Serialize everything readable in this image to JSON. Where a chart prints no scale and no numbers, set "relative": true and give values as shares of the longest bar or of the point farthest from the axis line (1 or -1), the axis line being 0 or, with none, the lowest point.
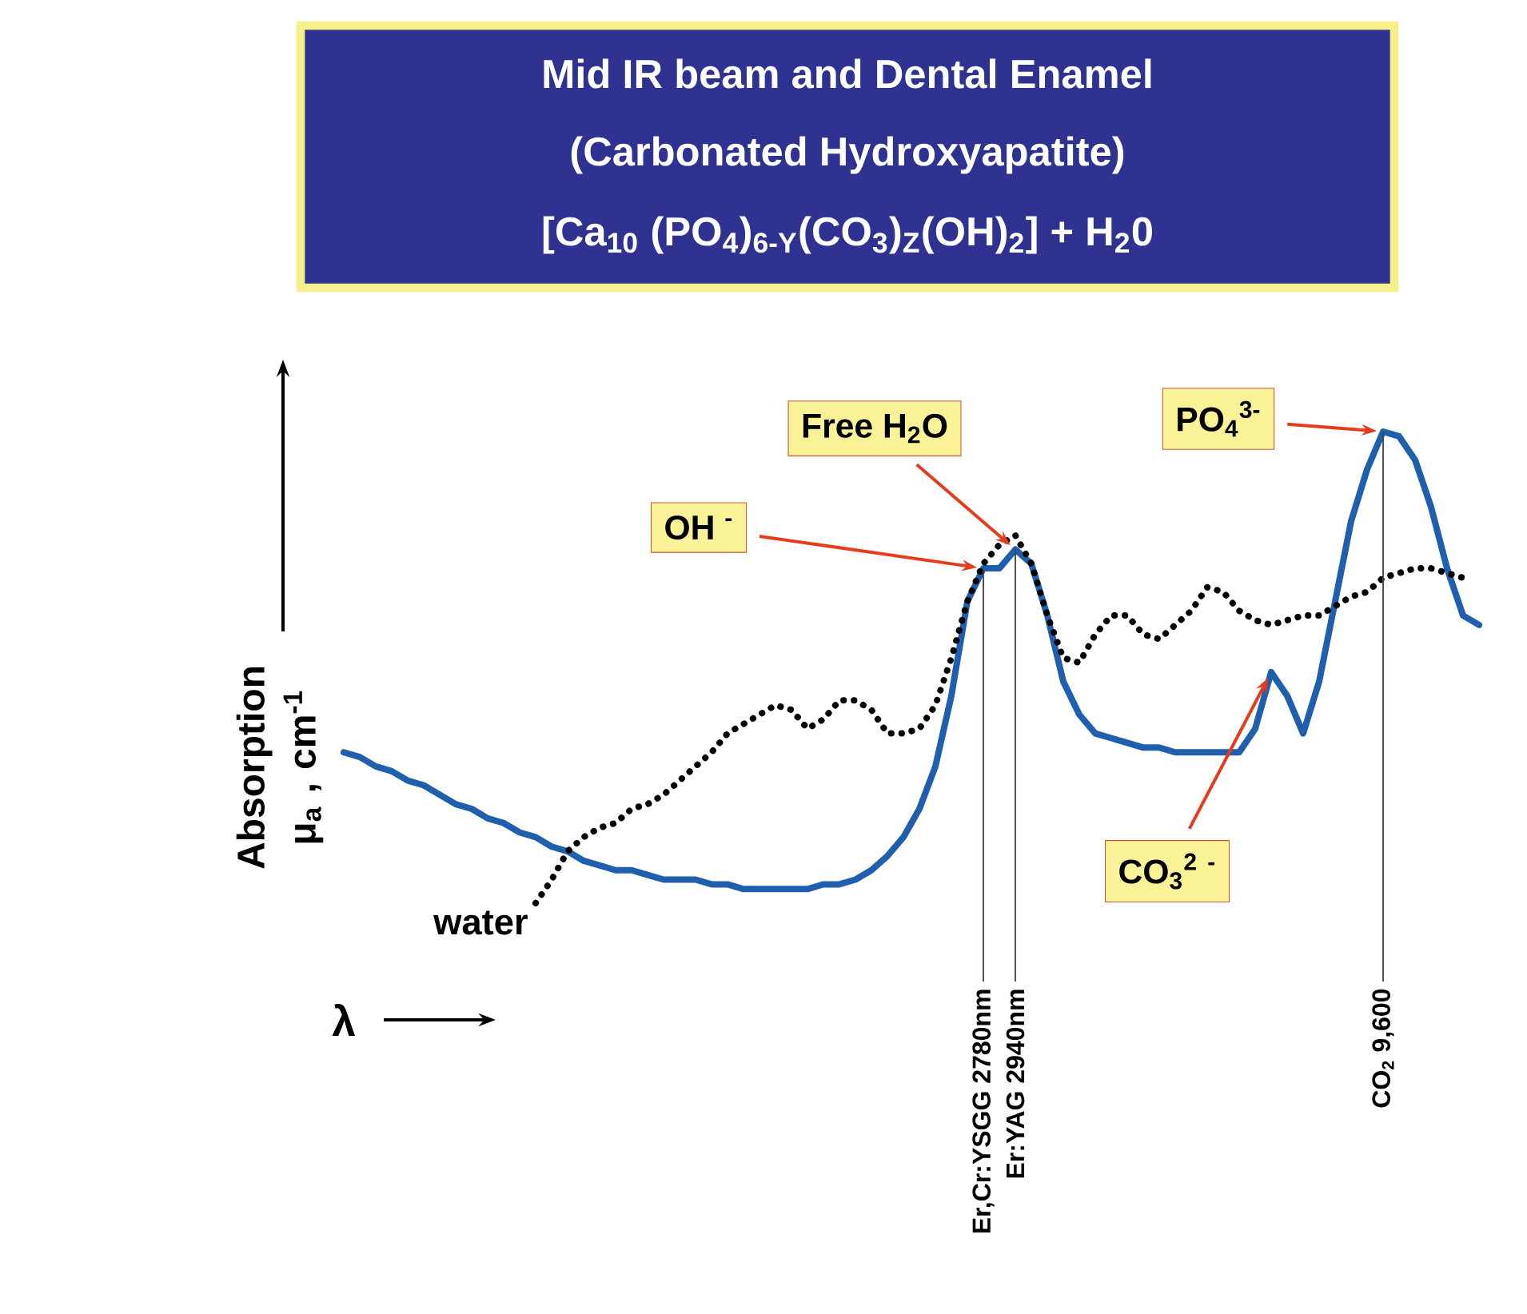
{
  "chart_data": {
    "type": "line",
    "title": "Mid IR beam and Dental Enamel",
    "subtitle": "(Carbonated Hydroxyapatite)",
    "xlabel": "λ",
    "ylabel": "Absorption μ$_{a}$ , cm$^{-1}$",
    "relative": true,
    "grid": "x",
    "categories": [
      null,
      null,
      null,
      null,
      null,
      null,
      null,
      null,
      null,
      null,
      null,
      null,
      null,
      null,
      null,
      null,
      null,
      null,
      null,
      null,
      null,
      null,
      null,
      null,
      null,
      null,
      null,
      null,
      null,
      null,
      null,
      null,
      null,
      null,
      null,
      null,
      null,
      null,
      null,
      null,
      "Er,Cr:YSGG 2780nm",
      null,
      "Er:YAG 2940nm",
      null,
      null,
      null,
      null,
      null,
      null,
      null,
      null,
      null,
      null,
      null,
      null,
      null,
      null,
      null,
      null,
      null,
      null,
      null,
      null,
      null,
      null,
      "CO$_{2}$ 9,600",
      null,
      null,
      null,
      null,
      null,
      null
    ],
    "series": [
      {
        "color": "#1f5fae",
        "line_style": "solid",
        "values": [
          0.32,
          0.31,
          0.29,
          0.28,
          0.26,
          0.25,
          0.23,
          0.21,
          0.2,
          0.18,
          0.17,
          0.15,
          0.14,
          0.12,
          0.11,
          0.09,
          0.08,
          0.07,
          0.07,
          0.06,
          0.05,
          0.05,
          0.05,
          0.04,
          0.04,
          0.03,
          0.03,
          0.03,
          0.03,
          0.03,
          0.04,
          0.04,
          0.05,
          0.07,
          0.1,
          0.14,
          0.2,
          0.29,
          0.44,
          0.64,
          0.71,
          0.71,
          0.75,
          0.72,
          0.61,
          0.47,
          0.4,
          0.36,
          0.35,
          0.34,
          0.33,
          0.33,
          0.32,
          0.32,
          0.32,
          0.32,
          0.32,
          0.37,
          0.49,
          0.44,
          0.36,
          0.47,
          0.64,
          0.81,
          0.92,
          1.0,
          0.99,
          0.94,
          0.84,
          0.71,
          0.61,
          0.59
        ]
      },
      {
        "name": "water",
        "color": "#000000",
        "line_style": "dotted",
        "values": [
          null,
          null,
          null,
          null,
          null,
          null,
          null,
          null,
          null,
          null,
          null,
          null,
          0,
          0.05,
          0.11,
          0.14,
          0.16,
          0.17,
          0.2,
          0.21,
          0.23,
          0.26,
          0.29,
          0.32,
          0.36,
          0.38,
          0.4,
          0.42,
          0.41,
          0.37,
          0.39,
          0.43,
          0.43,
          0.41,
          0.36,
          0.36,
          0.37,
          0.42,
          0.52,
          0.64,
          0.72,
          0.76,
          0.78,
          0.72,
          0.61,
          0.52,
          0.51,
          0.57,
          0.61,
          0.61,
          0.57,
          0.56,
          0.59,
          0.62,
          0.67,
          0.66,
          0.62,
          0.6,
          0.59,
          0.6,
          0.61,
          0.61,
          0.63,
          0.65,
          0.66,
          0.69,
          0.7,
          0.71,
          0.71,
          0.7,
          0.69,
          null
        ]
      }
    ],
    "annotations": [
      "[Ca$_{10}$ (PO$_{4}$)$_{6-Y}$(CO$_{3}$)$_{Z}$(OH)$_{2}$] + H$_{2}$0",
      "OH $^{-}$",
      "Free H$_{2}$O",
      "PO$_{4}$$^{3-}$",
      "CO$_{3}$$^{2}$ $^{-}$"
    ]
  }
}
